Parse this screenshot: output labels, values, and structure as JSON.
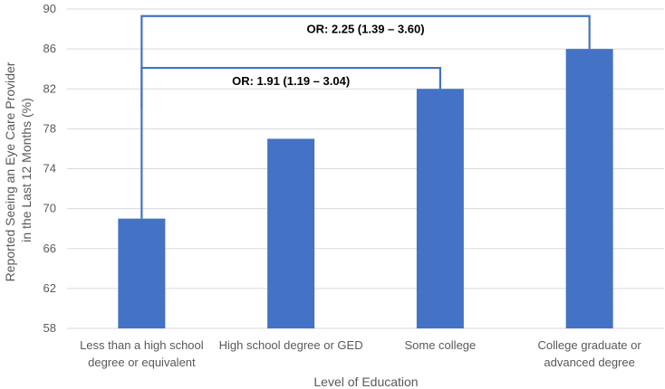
{
  "chart_data": {
    "type": "bar",
    "title": "",
    "xlabel": "Level of Education",
    "ylabel_lines": [
      "Reported Seeing an Eye Care Provider",
      "in the Last 12 Months (%)"
    ],
    "ylim": [
      58,
      90
    ],
    "yticks": [
      58,
      62,
      66,
      70,
      74,
      78,
      82,
      86,
      90
    ],
    "grid": true,
    "categories": [
      [
        "Less than a high school",
        "degree or equivalent"
      ],
      [
        "High school degree or GED"
      ],
      [
        "Some college"
      ],
      [
        "College graduate or",
        "advanced degree"
      ]
    ],
    "values": [
      69,
      77,
      82,
      86
    ],
    "bar_color": "#4472C4",
    "annotations": [
      {
        "from": 0,
        "to": 3,
        "label": "OR: 2.25 (1.39 – 3.60)",
        "level": 89.3
      },
      {
        "from": 0,
        "to": 2,
        "label": "OR: 1.91 (1.19 – 3.04)",
        "level": 84.1
      }
    ]
  },
  "colors": {
    "bar": "#4472C4",
    "bracket": "#4472C4",
    "grid": "#d9d9d9",
    "text": "#595959"
  }
}
